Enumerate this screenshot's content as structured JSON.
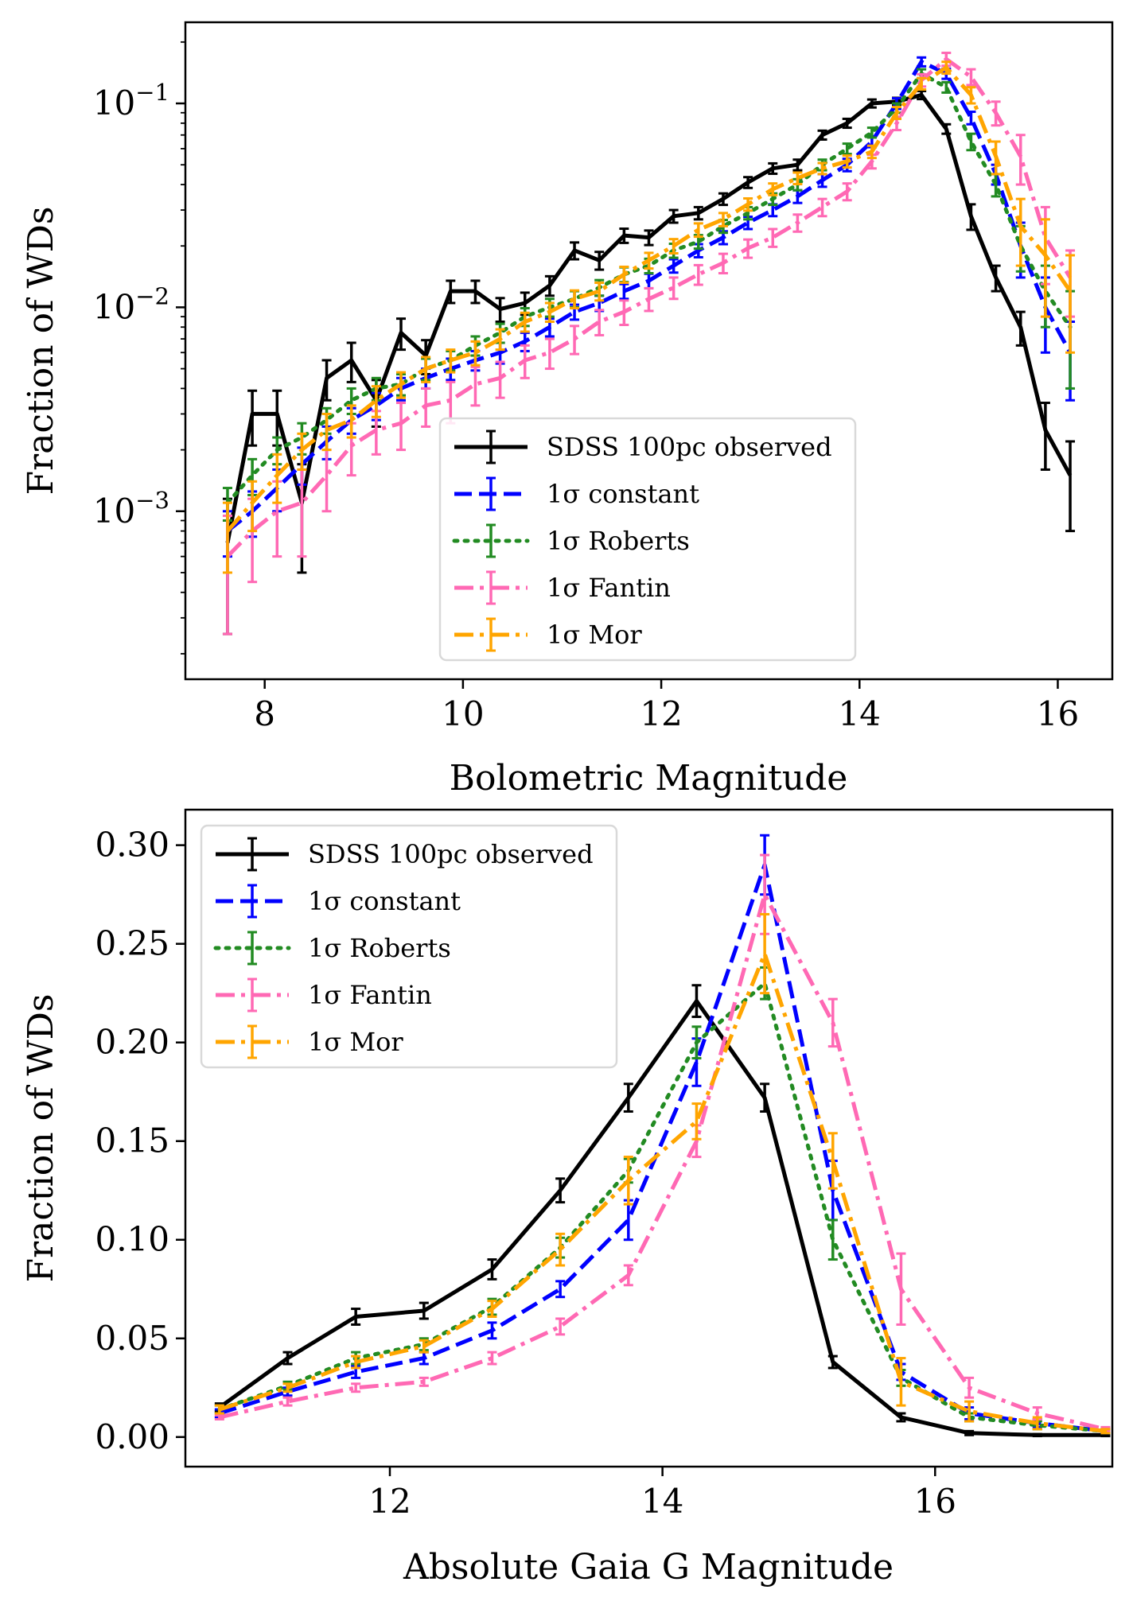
{
  "chart_data": [
    {
      "type": "line",
      "panel": "top",
      "title": "",
      "xlabel": "Bolometric Magnitude",
      "ylabel": "Fraction of WDs",
      "xlim": [
        7.2,
        16.55
      ],
      "ylim": [
        0.00015,
        0.25
      ],
      "yscale": "log",
      "xticks": [
        8,
        10,
        12,
        14,
        16
      ],
      "xtick_labels": [
        "8",
        "10",
        "12",
        "14",
        "16"
      ],
      "yticks": [
        0.001,
        0.01,
        0.1
      ],
      "ytick_base": "10",
      "ytick_exponents": [
        "−3",
        "−2",
        "−1"
      ],
      "legend_position": "lower-center",
      "series": [
        {
          "name": "SDSS 100pc observed",
          "color": "#000000",
          "dash": "solid",
          "x": [
            7.625,
            7.875,
            8.125,
            8.375,
            8.625,
            8.875,
            9.125,
            9.375,
            9.625,
            9.875,
            10.125,
            10.375,
            10.625,
            10.875,
            11.125,
            11.375,
            11.625,
            11.875,
            12.125,
            12.375,
            12.625,
            12.875,
            13.125,
            13.375,
            13.625,
            13.875,
            14.125,
            14.375,
            14.625,
            14.875,
            15.125,
            15.375,
            15.625,
            15.875,
            16.125
          ],
          "y": [
            0.0007,
            0.003,
            0.003,
            0.0011,
            0.0045,
            0.0055,
            0.0035,
            0.0075,
            0.0058,
            0.012,
            0.012,
            0.0098,
            0.0105,
            0.0128,
            0.019,
            0.017,
            0.0225,
            0.022,
            0.028,
            0.029,
            0.034,
            0.041,
            0.048,
            0.05,
            0.07,
            0.08,
            0.1,
            0.102,
            0.11,
            0.075,
            0.028,
            0.014,
            0.008,
            0.0025,
            0.0015
          ],
          "err": [
            0.00045,
            0.0009,
            0.0009,
            0.0006,
            0.001,
            0.0012,
            0.0009,
            0.0013,
            0.0011,
            0.0015,
            0.0015,
            0.0013,
            0.0013,
            0.0014,
            0.0018,
            0.0017,
            0.0018,
            0.0018,
            0.002,
            0.002,
            0.0022,
            0.0025,
            0.0028,
            0.003,
            0.0035,
            0.004,
            0.0045,
            0.0045,
            0.005,
            0.004,
            0.004,
            0.002,
            0.0015,
            0.0009,
            0.0007
          ]
        },
        {
          "name": "1σ constant",
          "color": "#0000ff",
          "dash": "dashed",
          "x": [
            7.625,
            7.875,
            8.125,
            8.375,
            8.625,
            8.875,
            9.125,
            9.375,
            9.625,
            9.875,
            10.125,
            10.375,
            10.625,
            10.875,
            11.125,
            11.375,
            11.625,
            11.875,
            12.125,
            12.375,
            12.625,
            12.875,
            13.125,
            13.375,
            13.625,
            13.875,
            14.125,
            14.375,
            14.625,
            14.875,
            15.125,
            15.375,
            15.625,
            15.875,
            16.125
          ],
          "y": [
            0.0008,
            0.001,
            0.0013,
            0.0017,
            0.0022,
            0.0028,
            0.0033,
            0.004,
            0.0045,
            0.005,
            0.0055,
            0.006,
            0.0068,
            0.008,
            0.0095,
            0.0105,
            0.012,
            0.0135,
            0.016,
            0.019,
            0.022,
            0.026,
            0.03,
            0.035,
            0.042,
            0.05,
            0.065,
            0.1,
            0.16,
            0.14,
            0.085,
            0.045,
            0.02,
            0.01,
            0.006
          ],
          "err": [
            0.0002,
            0.00025,
            0.0003,
            0.00035,
            0.0004,
            0.0004,
            0.0005,
            0.0005,
            0.0005,
            0.0006,
            0.0006,
            0.0007,
            0.0007,
            0.0008,
            0.0008,
            0.0009,
            0.001,
            0.0011,
            0.0012,
            0.0014,
            0.0016,
            0.0018,
            0.002,
            0.0025,
            0.003,
            0.0035,
            0.004,
            0.006,
            0.008,
            0.008,
            0.006,
            0.005,
            0.006,
            0.004,
            0.0025
          ]
        },
        {
          "name": "1σ Roberts",
          "color": "#228b22",
          "dash": "dotted",
          "x": [
            7.625,
            7.875,
            8.125,
            8.375,
            8.625,
            8.875,
            9.125,
            9.375,
            9.625,
            9.875,
            10.125,
            10.375,
            10.625,
            10.875,
            11.125,
            11.375,
            11.625,
            11.875,
            12.125,
            12.375,
            12.625,
            12.875,
            13.125,
            13.375,
            13.625,
            13.875,
            14.125,
            14.375,
            14.625,
            14.875,
            15.125,
            15.375,
            15.625,
            15.875,
            16.125
          ],
          "y": [
            0.0011,
            0.0015,
            0.002,
            0.0023,
            0.0028,
            0.0035,
            0.004,
            0.0042,
            0.005,
            0.0055,
            0.0065,
            0.0075,
            0.009,
            0.01,
            0.011,
            0.0125,
            0.0145,
            0.016,
            0.019,
            0.021,
            0.025,
            0.029,
            0.034,
            0.04,
            0.05,
            0.06,
            0.072,
            0.095,
            0.14,
            0.12,
            0.065,
            0.04,
            0.02,
            0.012,
            0.008
          ],
          "err": [
            0.0002,
            0.0003,
            0.0003,
            0.0004,
            0.0004,
            0.0005,
            0.0005,
            0.0005,
            0.0006,
            0.0006,
            0.0007,
            0.0008,
            0.0009,
            0.001,
            0.001,
            0.0011,
            0.0012,
            0.0013,
            0.0015,
            0.0016,
            0.0018,
            0.002,
            0.0022,
            0.0025,
            0.003,
            0.0035,
            0.004,
            0.005,
            0.007,
            0.007,
            0.006,
            0.005,
            0.005,
            0.004,
            0.004
          ]
        },
        {
          "name": "1σ Fantin",
          "color": "#ff69b4",
          "dash": "dashdot",
          "x": [
            7.625,
            7.875,
            8.125,
            8.375,
            8.625,
            8.875,
            9.125,
            9.375,
            9.625,
            9.875,
            10.125,
            10.375,
            10.625,
            10.875,
            11.125,
            11.375,
            11.625,
            11.875,
            12.125,
            12.375,
            12.625,
            12.875,
            13.125,
            13.375,
            13.625,
            13.875,
            14.125,
            14.375,
            14.625,
            14.875,
            15.125,
            15.375,
            15.625,
            15.875,
            16.125
          ],
          "y": [
            0.0006,
            0.0008,
            0.001,
            0.0011,
            0.0015,
            0.0021,
            0.0025,
            0.0027,
            0.0033,
            0.0035,
            0.0042,
            0.0045,
            0.0055,
            0.006,
            0.007,
            0.0085,
            0.0095,
            0.011,
            0.0125,
            0.0145,
            0.0165,
            0.0195,
            0.022,
            0.026,
            0.031,
            0.037,
            0.052,
            0.08,
            0.13,
            0.165,
            0.135,
            0.09,
            0.055,
            0.022,
            0.014
          ],
          "err": [
            0.00035,
            0.00035,
            0.0004,
            0.0005,
            0.0005,
            0.0006,
            0.0006,
            0.0007,
            0.0007,
            0.0008,
            0.0009,
            0.0009,
            0.001,
            0.001,
            0.0011,
            0.0012,
            0.0013,
            0.0014,
            0.0015,
            0.0016,
            0.0018,
            0.002,
            0.0022,
            0.0025,
            0.003,
            0.0035,
            0.004,
            0.006,
            0.009,
            0.012,
            0.012,
            0.012,
            0.015,
            0.009,
            0.005
          ]
        },
        {
          "name": "1σ Mor",
          "color": "#ffa500",
          "dash": "dashdot",
          "x": [
            7.625,
            7.875,
            8.125,
            8.375,
            8.625,
            8.875,
            9.125,
            9.375,
            9.625,
            9.875,
            10.125,
            10.375,
            10.625,
            10.875,
            11.125,
            11.375,
            11.625,
            11.875,
            12.125,
            12.375,
            12.625,
            12.875,
            13.125,
            13.375,
            13.625,
            13.875,
            14.125,
            14.375,
            14.625,
            14.875,
            15.125,
            15.375,
            15.625,
            15.875,
            16.125
          ],
          "y": [
            0.0008,
            0.0011,
            0.0015,
            0.002,
            0.0025,
            0.0028,
            0.0035,
            0.0042,
            0.005,
            0.0055,
            0.006,
            0.007,
            0.0085,
            0.0095,
            0.011,
            0.012,
            0.0145,
            0.017,
            0.02,
            0.024,
            0.027,
            0.032,
            0.038,
            0.043,
            0.048,
            0.052,
            0.058,
            0.09,
            0.125,
            0.15,
            0.11,
            0.055,
            0.025,
            0.018,
            0.012
          ],
          "err": [
            0.0003,
            0.0003,
            0.0004,
            0.0004,
            0.0005,
            0.0005,
            0.0006,
            0.0006,
            0.0007,
            0.0007,
            0.0008,
            0.0008,
            0.0009,
            0.001,
            0.0011,
            0.0012,
            0.0013,
            0.0015,
            0.0016,
            0.0018,
            0.002,
            0.0022,
            0.0025,
            0.0028,
            0.003,
            0.0035,
            0.004,
            0.006,
            0.008,
            0.01,
            0.01,
            0.01,
            0.009,
            0.009,
            0.006
          ]
        }
      ]
    },
    {
      "type": "line",
      "panel": "bottom",
      "title": "",
      "xlabel": "Absolute Gaia G Magnitude",
      "ylabel": "Fraction of WDs",
      "xlim": [
        10.5,
        17.3
      ],
      "ylim": [
        -0.015,
        0.318
      ],
      "yscale": "linear",
      "xticks": [
        12,
        14,
        16
      ],
      "xtick_labels": [
        "12",
        "14",
        "16"
      ],
      "yticks": [
        0,
        0.05,
        0.1,
        0.15,
        0.2,
        0.25,
        0.3
      ],
      "ytick_labels": [
        "0.00",
        "0.05",
        "0.10",
        "0.15",
        "0.20",
        "0.25",
        "0.30"
      ],
      "legend_position": "upper-left",
      "series": [
        {
          "name": "SDSS 100pc observed",
          "color": "#000000",
          "dash": "solid",
          "x": [
            10.75,
            11.25,
            11.75,
            12.25,
            12.75,
            13.25,
            13.75,
            14.25,
            14.75,
            15.25,
            15.75,
            16.25,
            16.75,
            17.25
          ],
          "y": [
            0.015,
            0.04,
            0.061,
            0.064,
            0.085,
            0.125,
            0.172,
            0.221,
            0.172,
            0.038,
            0.01,
            0.002,
            0.001,
            0.001
          ],
          "err": [
            0.002,
            0.003,
            0.004,
            0.004,
            0.005,
            0.006,
            0.007,
            0.008,
            0.007,
            0.003,
            0.002,
            0.001,
            0.0005,
            0.0005
          ]
        },
        {
          "name": "1σ constant",
          "color": "#0000ff",
          "dash": "dashed",
          "x": [
            10.75,
            11.25,
            11.75,
            12.25,
            12.75,
            13.25,
            13.75,
            14.25,
            14.75,
            15.25,
            15.75,
            16.25,
            16.75,
            17.25
          ],
          "y": [
            0.012,
            0.023,
            0.033,
            0.04,
            0.054,
            0.075,
            0.11,
            0.19,
            0.29,
            0.125,
            0.033,
            0.012,
            0.007,
            0.003
          ],
          "err": [
            0.002,
            0.002,
            0.003,
            0.003,
            0.004,
            0.004,
            0.01,
            0.012,
            0.015,
            0.015,
            0.004,
            0.003,
            0.002,
            0.001
          ]
        },
        {
          "name": "1σ Roberts",
          "color": "#228b22",
          "dash": "dotted",
          "x": [
            10.75,
            11.25,
            11.75,
            12.25,
            12.75,
            13.25,
            13.75,
            14.25,
            14.75,
            15.25,
            15.75,
            16.25,
            16.75,
            17.25
          ],
          "y": [
            0.014,
            0.026,
            0.04,
            0.047,
            0.066,
            0.096,
            0.135,
            0.2,
            0.23,
            0.1,
            0.03,
            0.01,
            0.006,
            0.003
          ],
          "err": [
            0.002,
            0.002,
            0.003,
            0.003,
            0.004,
            0.005,
            0.006,
            0.008,
            0.008,
            0.01,
            0.004,
            0.002,
            0.002,
            0.001
          ]
        },
        {
          "name": "1σ Fantin",
          "color": "#ff69b4",
          "dash": "dashdot",
          "x": [
            10.75,
            11.25,
            11.75,
            12.25,
            12.75,
            13.25,
            13.75,
            14.25,
            14.75,
            15.25,
            15.75,
            16.25,
            16.75,
            17.25
          ],
          "y": [
            0.01,
            0.018,
            0.025,
            0.028,
            0.04,
            0.056,
            0.082,
            0.15,
            0.275,
            0.21,
            0.075,
            0.025,
            0.012,
            0.004
          ],
          "err": [
            0.001,
            0.002,
            0.002,
            0.002,
            0.003,
            0.004,
            0.005,
            0.008,
            0.02,
            0.012,
            0.018,
            0.005,
            0.003,
            0.001
          ]
        },
        {
          "name": "1σ Mor",
          "color": "#ffa500",
          "dash": "dashdot",
          "x": [
            10.75,
            11.25,
            11.75,
            12.25,
            12.75,
            13.25,
            13.75,
            14.25,
            14.75,
            15.25,
            15.75,
            16.25,
            16.75,
            17.25
          ],
          "y": [
            0.014,
            0.025,
            0.038,
            0.046,
            0.065,
            0.095,
            0.13,
            0.16,
            0.245,
            0.14,
            0.028,
            0.013,
            0.007,
            0.003
          ],
          "err": [
            0.002,
            0.002,
            0.003,
            0.003,
            0.004,
            0.008,
            0.012,
            0.009,
            0.02,
            0.014,
            0.012,
            0.005,
            0.003,
            0.001
          ]
        }
      ]
    }
  ]
}
